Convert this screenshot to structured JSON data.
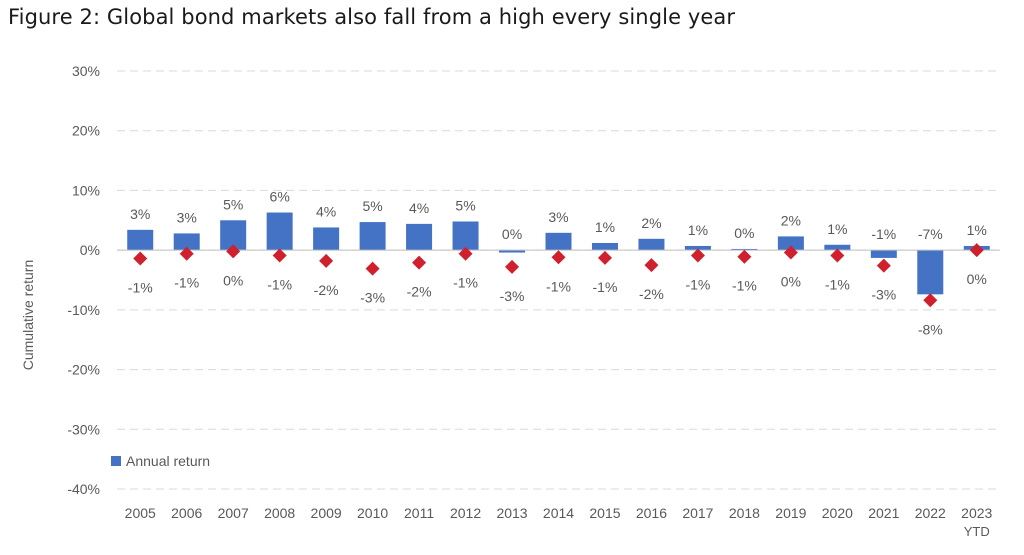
{
  "title": "Figure 2: Global bond markets also fall from a high every single year",
  "chart_data": {
    "type": "bar",
    "title": "Figure 2: Global bond markets also fall from a high every single year",
    "ylabel": "Cumulative return",
    "xlabel": "",
    "ylim": [
      -40,
      30
    ],
    "yticks": [
      30,
      20,
      10,
      0,
      -10,
      -20,
      -30,
      -40
    ],
    "ytick_labels": [
      "30%",
      "20%",
      "10%",
      "0%",
      "-10%",
      "-20%",
      "-30%",
      "-40%"
    ],
    "grid": true,
    "legend_position": "lower-left",
    "categories": [
      "2005",
      "2006",
      "2007",
      "2008",
      "2009",
      "2010",
      "2011",
      "2012",
      "2013",
      "2014",
      "2015",
      "2016",
      "2017",
      "2018",
      "2019",
      "2020",
      "2021",
      "2022",
      "2023"
    ],
    "category_sublabels": [
      "",
      "",
      "",
      "",
      "",
      "",
      "",
      "",
      "",
      "",
      "",
      "",
      "",
      "",
      "",
      "",
      "",
      "",
      "YTD"
    ],
    "series": [
      {
        "name": "Annual return",
        "kind": "bar",
        "color": "#4472C4",
        "values": [
          3.4,
          2.8,
          5.0,
          6.3,
          3.8,
          4.7,
          4.4,
          4.8,
          -0.4,
          2.9,
          1.2,
          1.9,
          0.7,
          0.2,
          2.3,
          0.9,
          -1.3,
          -7.4,
          0.7
        ],
        "labels": [
          "3%",
          "3%",
          "5%",
          "6%",
          "4%",
          "5%",
          "4%",
          "5%",
          "0%",
          "3%",
          "1%",
          "2%",
          "1%",
          "0%",
          "2%",
          "1%",
          "-1%",
          "-7%",
          "1%"
        ]
      },
      {
        "kind": "marker",
        "color": "#D0202D",
        "values": [
          -1.4,
          -0.6,
          -0.2,
          -0.9,
          -1.8,
          -3.1,
          -2.1,
          -0.6,
          -2.8,
          -1.2,
          -1.3,
          -2.5,
          -0.9,
          -1.1,
          -0.4,
          -0.9,
          -2.6,
          -8.4,
          0.0
        ],
        "labels": [
          "-1%",
          "-1%",
          "0%",
          "-1%",
          "-2%",
          "-3%",
          "-2%",
          "-1%",
          "-3%",
          "-1%",
          "-1%",
          "-2%",
          "-1%",
          "-1%",
          "0%",
          "-1%",
          "-3%",
          "-8%",
          "0%"
        ]
      }
    ]
  },
  "colors": {
    "text": "#595959",
    "grid": "#D9D9D9",
    "axis": "#BFBFBF"
  }
}
